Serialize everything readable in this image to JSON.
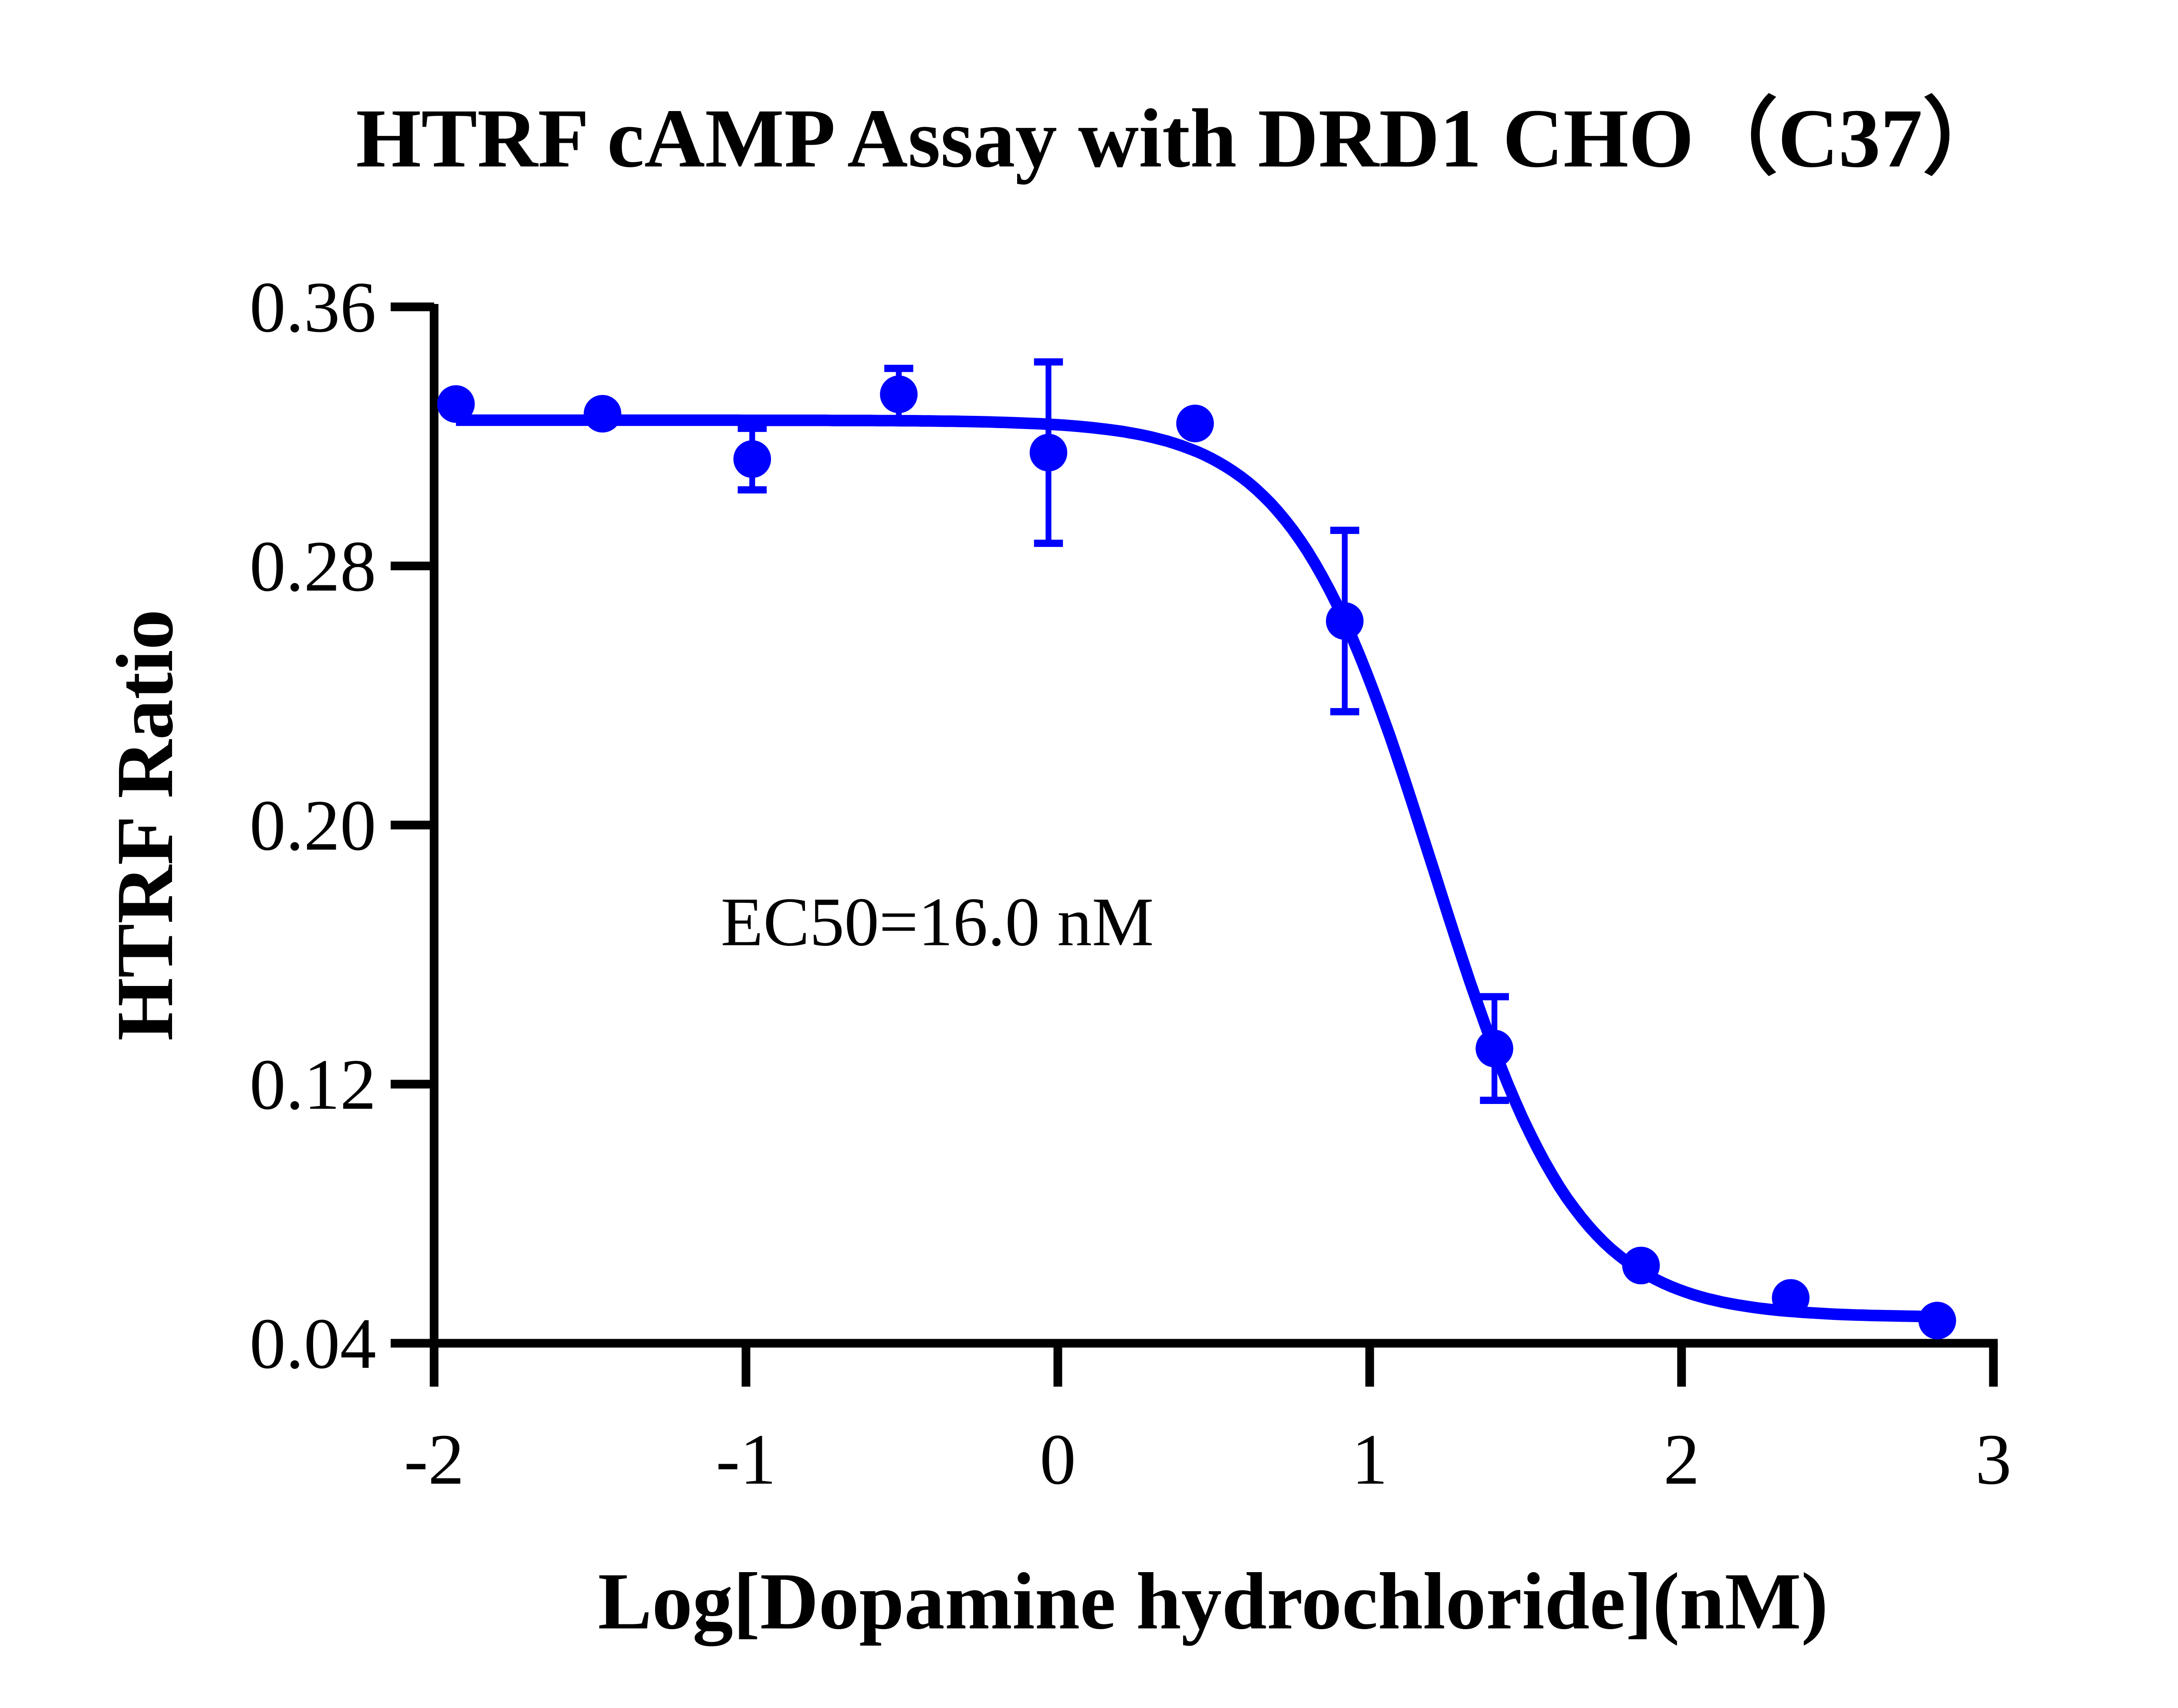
{
  "chart_data": {
    "type": "scatter",
    "title": "HTRF cAMP Assay with DRD1 CHO（C37）",
    "xlabel": "Log[Dopamine hydrochloride](nM)",
    "ylabel": "HTRF Ratio",
    "xlim": [
      -2,
      3
    ],
    "ylim": [
      0.04,
      0.36
    ],
    "xticks": [
      -2,
      -1,
      0,
      1,
      2,
      3
    ],
    "xtick_labels": [
      "-2",
      "-1",
      "0",
      "1",
      "2",
      "3"
    ],
    "yticks": [
      0.04,
      0.12,
      0.2,
      0.28,
      0.36
    ],
    "ytick_labels": [
      "0.04",
      "0.12",
      "0.20",
      "0.28",
      "0.36"
    ],
    "grid": false,
    "annotation": "EC50=16.0 nM",
    "color": "#0000ff",
    "points": [
      {
        "x": -1.93,
        "y": 0.33,
        "err": 0
      },
      {
        "x": -1.46,
        "y": 0.327,
        "err": 0
      },
      {
        "x": -0.98,
        "y": 0.313,
        "err": 0.0095
      },
      {
        "x": -0.51,
        "y": 0.333,
        "err": 0.008
      },
      {
        "x": -0.03,
        "y": 0.315,
        "err": 0.028
      },
      {
        "x": 0.44,
        "y": 0.324,
        "err": 0
      },
      {
        "x": 0.92,
        "y": 0.263,
        "err": 0.028
      },
      {
        "x": 1.4,
        "y": 0.131,
        "err": 0.016
      },
      {
        "x": 1.87,
        "y": 0.064,
        "err": 0
      },
      {
        "x": 2.35,
        "y": 0.054,
        "err": 0
      },
      {
        "x": 2.82,
        "y": 0.047,
        "err": 0
      }
    ],
    "fit": {
      "model": "4PL",
      "top": 0.325,
      "bottom": 0.048,
      "logEC50": 1.204,
      "hill": 1.9
    }
  }
}
